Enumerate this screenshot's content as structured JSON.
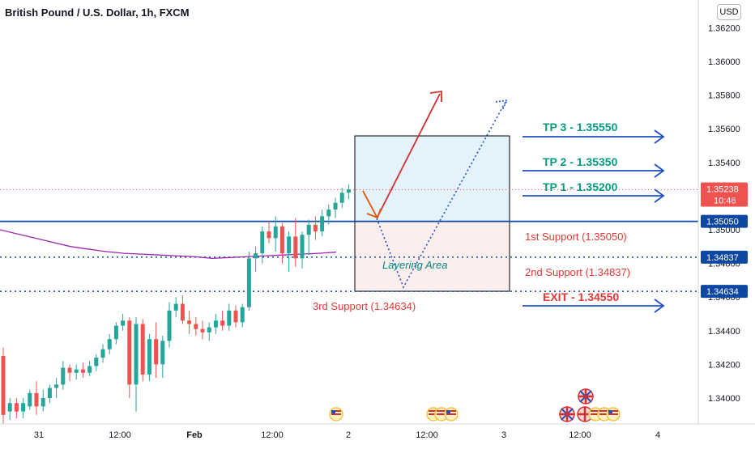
{
  "header": {
    "title": "British Pound / U.S. Dollar, 1h, FXCM",
    "currency": "USD"
  },
  "price_axis": {
    "ticks": [
      "1.36200",
      "1.36000",
      "1.35800",
      "1.35600",
      "1.35400",
      "1.35200",
      "1.35000",
      "1.34800",
      "1.34600",
      "1.34400",
      "1.34200",
      "1.34000"
    ],
    "tick_values": [
      1.362,
      1.36,
      1.358,
      1.356,
      1.354,
      1.352,
      1.35,
      1.348,
      1.346,
      1.344,
      1.342,
      1.34
    ],
    "last_price_label": "1.35238",
    "countdown_label": "10:46",
    "last_price": 1.35238,
    "level_labels": [
      {
        "text": "1.35050",
        "value": 1.3505,
        "color": "#0d47a1"
      },
      {
        "text": "1.34837",
        "value": 1.34837,
        "color": "#0d47a1"
      },
      {
        "text": "1.34634",
        "value": 1.34634,
        "color": "#0d47a1"
      }
    ]
  },
  "time_axis": {
    "labels": [
      "31",
      "12:00",
      "Feb",
      "12:00",
      "2",
      "12:00",
      "3",
      "12:00",
      "4"
    ],
    "bold": [
      "Feb"
    ]
  },
  "annotations": {
    "tp3": "TP 3 - 1.35550",
    "tp2": "TP 2 - 1.35350",
    "tp1": "TP 1 - 1.35200",
    "support1": "1st Support (1.35050)",
    "support2": "2nd Support (1.34837)",
    "support3": "3rd Support (1.34634)",
    "exit": "EXIT - 1.34550",
    "layering": "Layering Area"
  },
  "colors": {
    "up": "#26a69a",
    "down": "#ef5350",
    "level_line": "#0d47a1",
    "tp_text": "#089981",
    "support_text": "#e53935",
    "ma_line": "#9c27b0",
    "arrow_blue": "#1e4fc4"
  },
  "chart_data": {
    "type": "candlestick",
    "title": "British Pound / U.S. Dollar, 1h, FXCM",
    "ylim": [
      1.339,
      1.3635
    ],
    "ohlc": [
      [
        1.3425,
        1.343,
        1.3385,
        1.339
      ],
      [
        1.3392,
        1.34,
        1.3387,
        1.3397
      ],
      [
        1.3397,
        1.34,
        1.3388,
        1.3392
      ],
      [
        1.3392,
        1.34,
        1.3388,
        1.3397
      ],
      [
        1.3395,
        1.3405,
        1.3393,
        1.3403
      ],
      [
        1.3403,
        1.341,
        1.339,
        1.3395
      ],
      [
        1.3395,
        1.3405,
        1.3392,
        1.34
      ],
      [
        1.34,
        1.3408,
        1.3397,
        1.3406
      ],
      [
        1.3406,
        1.3412,
        1.34,
        1.3408
      ],
      [
        1.3408,
        1.3422,
        1.3405,
        1.3418
      ],
      [
        1.3418,
        1.342,
        1.341,
        1.3415
      ],
      [
        1.3415,
        1.342,
        1.3411,
        1.3417
      ],
      [
        1.3417,
        1.3421,
        1.3412,
        1.3415
      ],
      [
        1.3415,
        1.3422,
        1.3413,
        1.3419
      ],
      [
        1.3419,
        1.3426,
        1.3416,
        1.3424
      ],
      [
        1.3424,
        1.3432,
        1.3421,
        1.3429
      ],
      [
        1.3429,
        1.3438,
        1.3426,
        1.3435
      ],
      [
        1.3435,
        1.3445,
        1.3432,
        1.3443
      ],
      [
        1.3443,
        1.345,
        1.344,
        1.3446
      ],
      [
        1.3446,
        1.3448,
        1.34,
        1.3408
      ],
      [
        1.3408,
        1.3448,
        1.3392,
        1.3444
      ],
      [
        1.3444,
        1.3447,
        1.341,
        1.3414
      ],
      [
        1.3414,
        1.3438,
        1.341,
        1.3435
      ],
      [
        1.3435,
        1.3445,
        1.3412,
        1.342
      ],
      [
        1.342,
        1.3437,
        1.3412,
        1.3434
      ],
      [
        1.3434,
        1.3457,
        1.343,
        1.3452
      ],
      [
        1.3452,
        1.346,
        1.3448,
        1.3456
      ],
      [
        1.3456,
        1.3461,
        1.3444,
        1.3446
      ],
      [
        1.3446,
        1.3452,
        1.3438,
        1.3444
      ],
      [
        1.3444,
        1.3448,
        1.3437,
        1.3441
      ],
      [
        1.3441,
        1.3446,
        1.3435,
        1.3439
      ],
      [
        1.3439,
        1.3445,
        1.3434,
        1.3442
      ],
      [
        1.3442,
        1.345,
        1.3438,
        1.3446
      ],
      [
        1.3446,
        1.3452,
        1.344,
        1.3443
      ],
      [
        1.3443,
        1.3456,
        1.344,
        1.3452
      ],
      [
        1.3452,
        1.3455,
        1.3442,
        1.3445
      ],
      [
        1.3445,
        1.3456,
        1.3442,
        1.3454
      ],
      [
        1.3454,
        1.3487,
        1.3452,
        1.3483
      ],
      [
        1.3483,
        1.349,
        1.3475,
        1.3486
      ],
      [
        1.3486,
        1.3502,
        1.348,
        1.3499
      ],
      [
        1.3499,
        1.3505,
        1.3492,
        1.3495
      ],
      [
        1.3495,
        1.3508,
        1.3487,
        1.3502
      ],
      [
        1.3502,
        1.3504,
        1.348,
        1.3486
      ],
      [
        1.3486,
        1.3499,
        1.3475,
        1.3496
      ],
      [
        1.3496,
        1.3507,
        1.3478,
        1.3483
      ],
      [
        1.3483,
        1.3499,
        1.3477,
        1.3497
      ],
      [
        1.3497,
        1.3506,
        1.3485,
        1.3503
      ],
      [
        1.3503,
        1.3508,
        1.3494,
        1.3499
      ],
      [
        1.3499,
        1.3512,
        1.3496,
        1.3508
      ],
      [
        1.3508,
        1.3515,
        1.3503,
        1.3512
      ],
      [
        1.3512,
        1.3519,
        1.3507,
        1.3516
      ],
      [
        1.3516,
        1.3525,
        1.3513,
        1.3522
      ],
      [
        1.3522,
        1.3527,
        1.3518,
        1.3524
      ]
    ],
    "moving_average": [
      1.35,
      1.34975,
      1.3495,
      1.34925,
      1.349,
      1.34885,
      1.3487,
      1.3486,
      1.34855,
      1.3485,
      1.34845,
      1.3484,
      1.3483,
      1.34835,
      1.3484,
      1.34845,
      1.3485,
      1.34855,
      1.3486,
      1.34867
    ],
    "levels": [
      1.3505,
      1.34837,
      1.34634
    ],
    "last_price": 1.35238
  }
}
